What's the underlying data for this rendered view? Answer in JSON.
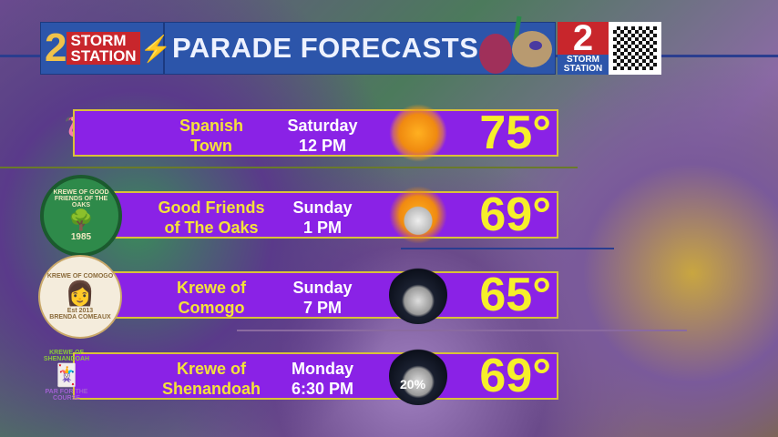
{
  "header": {
    "logo_number": "2",
    "logo_line1": "STORM",
    "logo_line2": "STATION",
    "title": "PARADE FORECASTS",
    "badge_number": "2",
    "badge_line1": "STORM",
    "badge_line2": "STATION"
  },
  "colors": {
    "header": "#2c55aa",
    "row": "#8a22e6",
    "name_text": "#f4e23a",
    "temp_text": "#f6ef2a",
    "border": "#d9c13a"
  },
  "parades": [
    {
      "name1": "Spanish",
      "name2": "Town",
      "day": "Saturday",
      "time": "12 PM",
      "icon": "sunny",
      "temp": "75°"
    },
    {
      "name1": "Good Friends",
      "name2": "of The Oaks",
      "day": "Sunday",
      "time": "1 PM",
      "icon": "partly-cloudy",
      "temp": "69°",
      "logo_text": "KREWE OF GOOD FRIENDS OF THE OAKS",
      "logo_year": "1985"
    },
    {
      "name1": "Krewe of",
      "name2": "Comogo",
      "day": "Sunday",
      "time": "7 PM",
      "icon": "night-cloudy",
      "temp": "65°",
      "logo_text": "KREWE OF COMOGO",
      "logo_year": "Est 2013",
      "logo_sub": "BRENDA COMEAUX"
    },
    {
      "name1": "Krewe of",
      "name2": "Shenandoah",
      "day": "Monday",
      "time": "6:30 PM",
      "icon": "night-cloudy",
      "temp": "69°",
      "rain_chance": "20%",
      "logo_text": "KREWE OF SHENANDOAH",
      "logo_sub": "PAR FOR THE COURSE"
    }
  ]
}
